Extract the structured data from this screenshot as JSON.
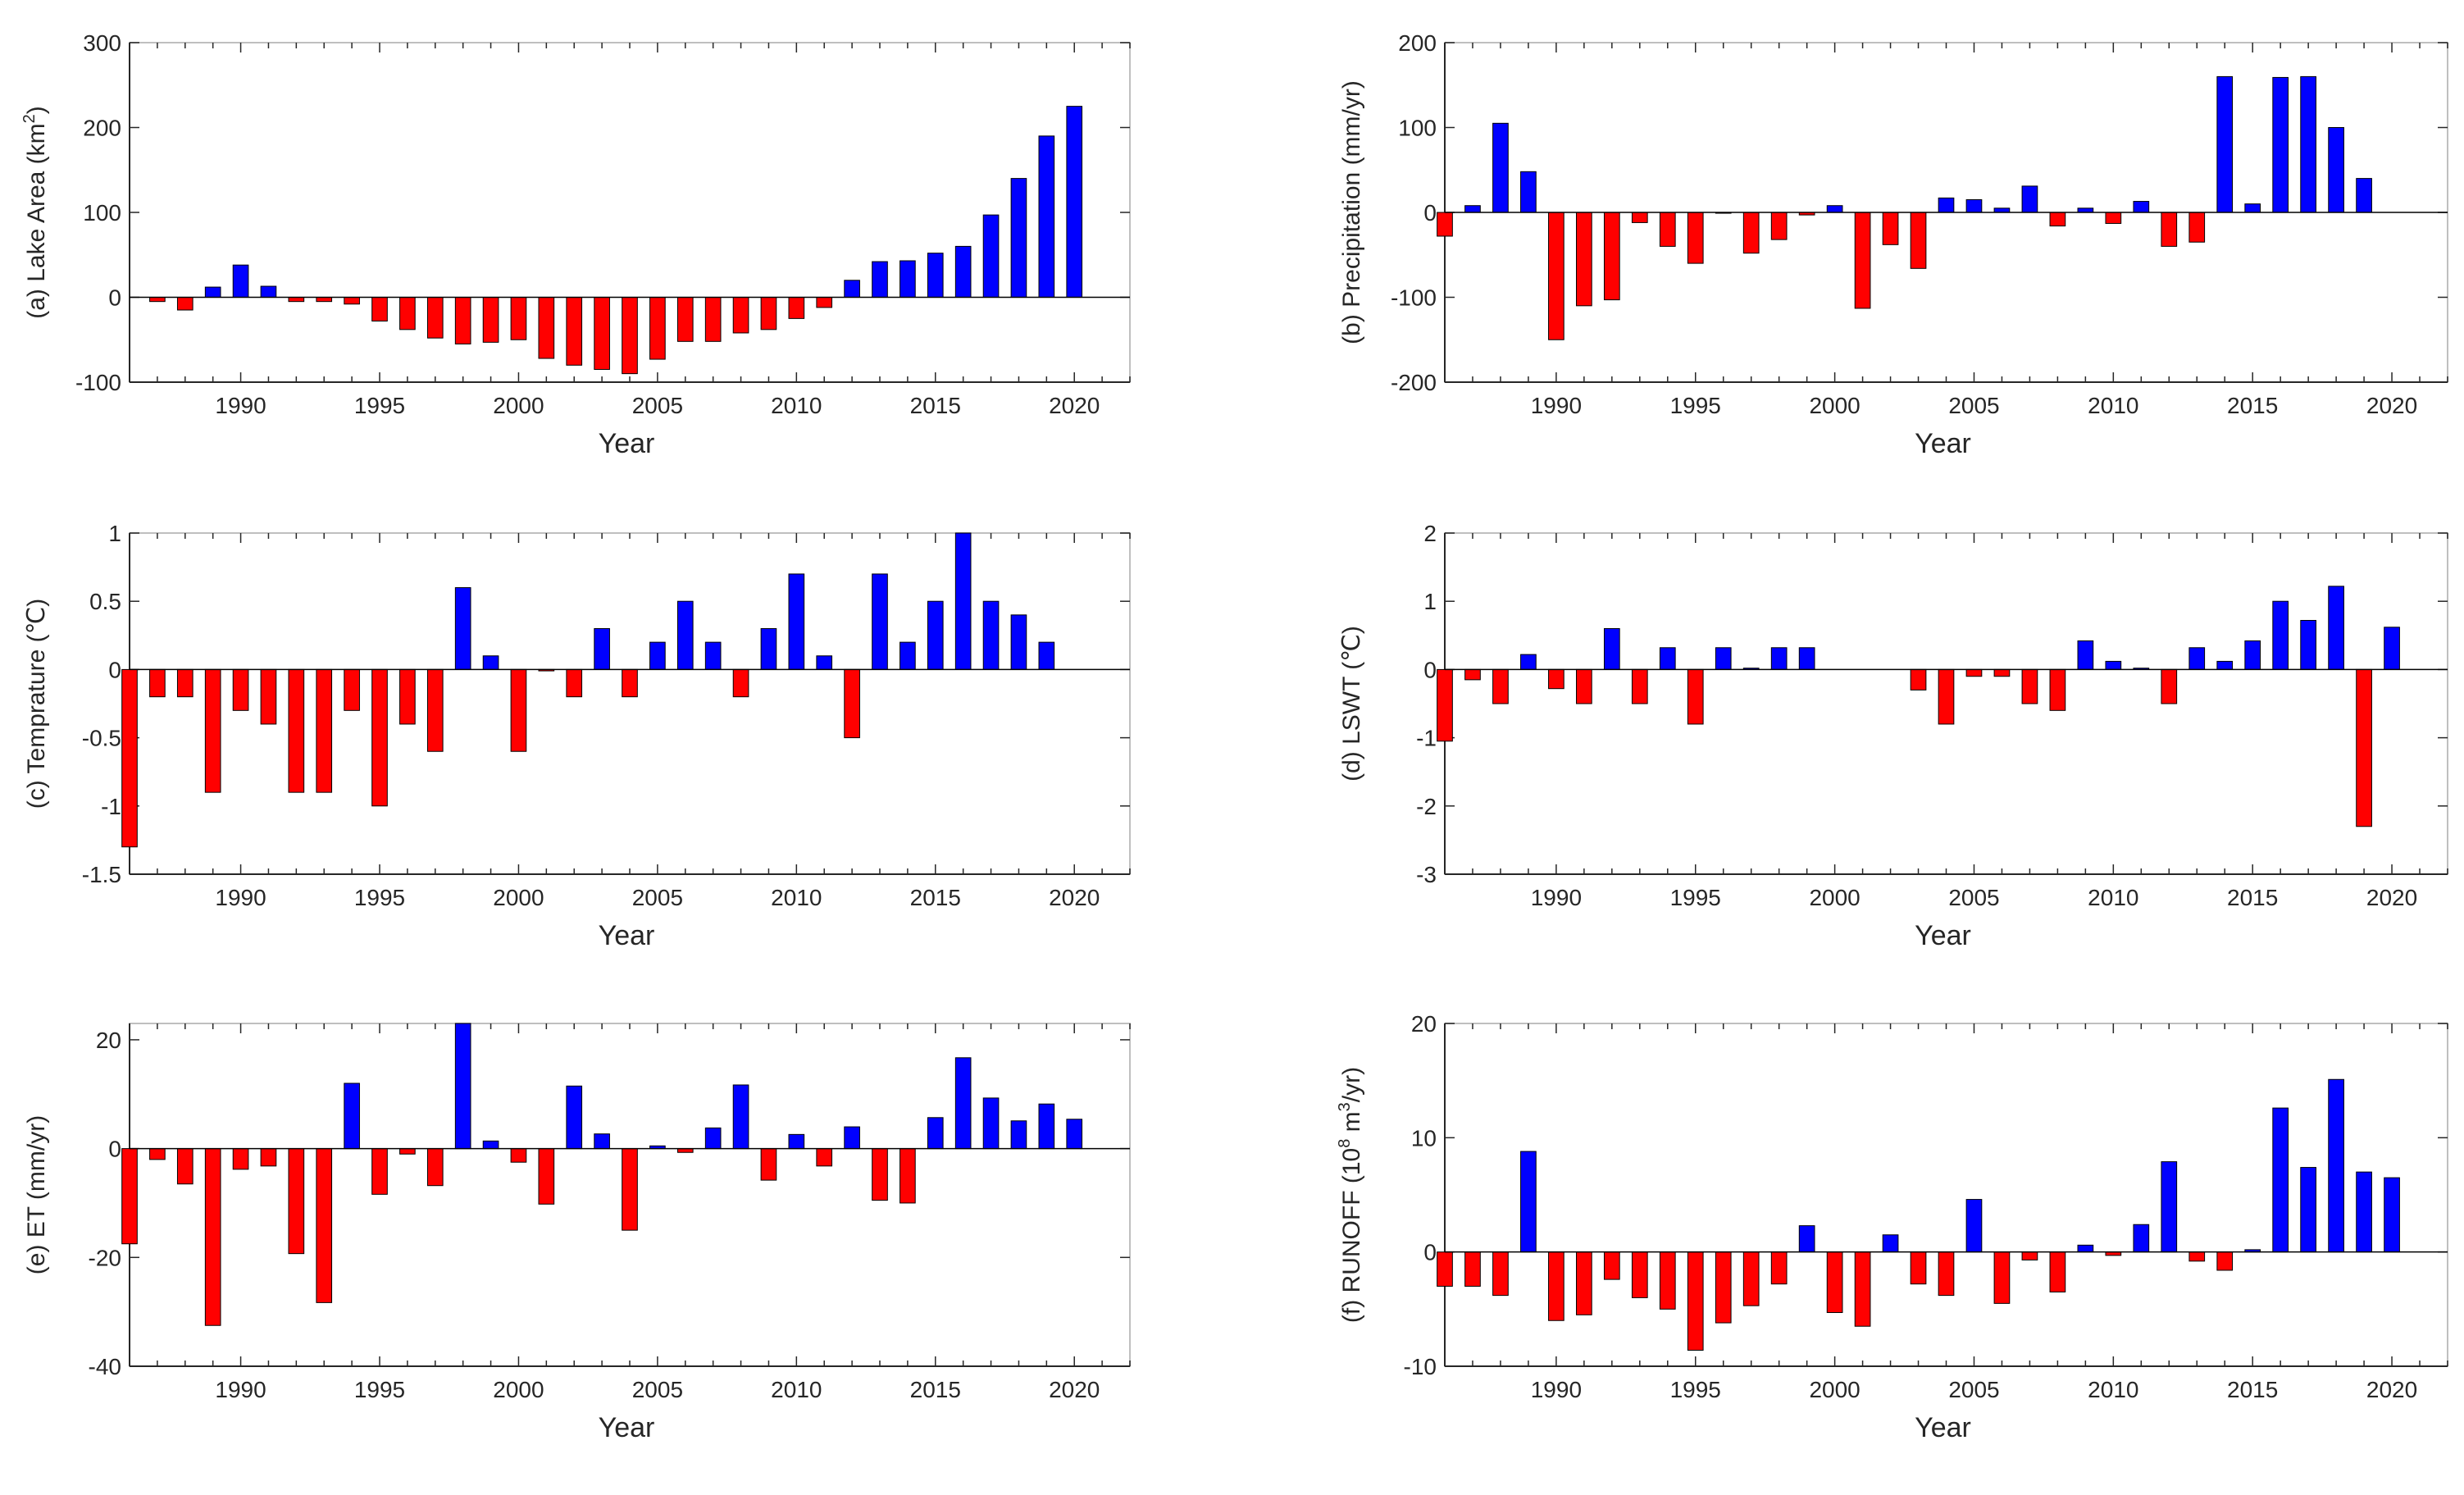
{
  "colors": {
    "positive": "#0000ff",
    "negative": "#ff0000",
    "axis": "#262626",
    "frame": "#bfbfbf",
    "background": "#ffffff"
  },
  "chart_data": [
    {
      "id": "a",
      "type": "bar",
      "ylabel": "(a) Lake Area (km²)",
      "ylabel_main": "(a) Lake Area (km",
      "ylabel_sup": "2",
      "ylabel_tail": ")",
      "xlabel": "Year",
      "xlim": [
        1986,
        2022
      ],
      "ylim": [
        -100,
        300
      ],
      "yticks": [
        -100,
        0,
        100,
        200,
        300
      ],
      "ytick_labels": [
        "-100",
        "0",
        "100",
        "200",
        "300"
      ],
      "xticks": [
        1990,
        1995,
        2000,
        2005,
        2010,
        2015,
        2020
      ],
      "xtick_labels": [
        "1990",
        "1995",
        "2000",
        "2005",
        "2010",
        "2015",
        "2020"
      ],
      "x": [
        1987,
        1988,
        1989,
        1990,
        1991,
        1992,
        1993,
        1994,
        1995,
        1996,
        1997,
        1998,
        1999,
        2000,
        2001,
        2002,
        2003,
        2004,
        2005,
        2006,
        2007,
        2008,
        2009,
        2010,
        2011,
        2012,
        2013,
        2014,
        2015,
        2016,
        2017,
        2018,
        2019,
        2020
      ],
      "values": [
        -5,
        -15,
        12,
        38,
        13,
        -5,
        -5,
        -8,
        -28,
        -38,
        -48,
        -55,
        -53,
        -50,
        -72,
        -80,
        -85,
        -90,
        -73,
        -52,
        -52,
        -42,
        -38,
        -25,
        -12,
        20,
        42,
        43,
        52,
        60,
        97,
        140,
        190,
        225
      ]
    },
    {
      "id": "b",
      "type": "bar",
      "ylabel": "(b) Precipitation (mm/yr)",
      "xlabel": "Year",
      "xlim": [
        1986,
        2022
      ],
      "ylim": [
        -200,
        200
      ],
      "yticks": [
        -200,
        -100,
        0,
        100,
        200
      ],
      "ytick_labels": [
        "-200",
        "-100",
        "0",
        "100",
        "200"
      ],
      "xticks": [
        1990,
        1995,
        2000,
        2005,
        2010,
        2015,
        2020
      ],
      "xtick_labels": [
        "1990",
        "1995",
        "2000",
        "2005",
        "2010",
        "2015",
        "2020"
      ],
      "x": [
        1986,
        1987,
        1988,
        1989,
        1990,
        1991,
        1992,
        1993,
        1994,
        1995,
        1996,
        1997,
        1998,
        1999,
        2000,
        2001,
        2002,
        2003,
        2004,
        2005,
        2006,
        2007,
        2008,
        2009,
        2010,
        2011,
        2012,
        2013,
        2014,
        2015,
        2016,
        2017,
        2018,
        2019
      ],
      "values": [
        -28,
        8,
        105,
        48,
        -150,
        -110,
        -103,
        -12,
        -40,
        -60,
        -1,
        -48,
        -32,
        -3,
        8,
        -113,
        -38,
        -66,
        17,
        15,
        5,
        31,
        -16,
        5,
        -13,
        13,
        -40,
        -35,
        160,
        10,
        159,
        160,
        100,
        40
      ]
    },
    {
      "id": "c",
      "type": "bar",
      "ylabel": "(c) Temprature (℃)",
      "xlabel": "Year",
      "xlim": [
        1986,
        2022
      ],
      "ylim": [
        -1.5,
        1
      ],
      "yticks": [
        -1.5,
        -1,
        -0.5,
        0,
        0.5,
        1
      ],
      "ytick_labels": [
        "-1.5",
        "-1",
        "-0.5",
        "0",
        "0.5",
        "1"
      ],
      "xticks": [
        1990,
        1995,
        2000,
        2005,
        2010,
        2015,
        2020
      ],
      "xtick_labels": [
        "1990",
        "1995",
        "2000",
        "2005",
        "2010",
        "2015",
        "2020"
      ],
      "x": [
        1986,
        1987,
        1988,
        1989,
        1990,
        1991,
        1992,
        1993,
        1994,
        1995,
        1996,
        1997,
        1998,
        1999,
        2000,
        2001,
        2002,
        2003,
        2004,
        2005,
        2006,
        2007,
        2008,
        2009,
        2010,
        2011,
        2012,
        2013,
        2014,
        2015,
        2016,
        2017,
        2018,
        2019
      ],
      "values": [
        -1.3,
        -0.2,
        -0.2,
        -0.9,
        -0.3,
        -0.4,
        -0.9,
        -0.9,
        -0.3,
        -1.0,
        -0.4,
        -0.6,
        0.6,
        0.1,
        -0.6,
        -0.01,
        -0.2,
        0.3,
        -0.2,
        0.2,
        0.5,
        0.2,
        -0.2,
        0.3,
        0.7,
        0.1,
        -0.5,
        0.7,
        0.2,
        0.5,
        1.0,
        0.5,
        0.4,
        0.2
      ]
    },
    {
      "id": "d",
      "type": "bar",
      "ylabel": "(d) LSWT (℃)",
      "xlabel": "Year",
      "xlim": [
        1986,
        2022
      ],
      "ylim": [
        -3,
        2
      ],
      "yticks": [
        -3,
        -2,
        -1,
        0,
        1,
        2
      ],
      "ytick_labels": [
        "-3",
        "-2",
        "-1",
        "0",
        "1",
        "2"
      ],
      "xticks": [
        1990,
        1995,
        2000,
        2005,
        2010,
        2015,
        2020
      ],
      "xtick_labels": [
        "1990",
        "1995",
        "2000",
        "2005",
        "2010",
        "2015",
        "2020"
      ],
      "x": [
        1986,
        1987,
        1988,
        1989,
        1990,
        1991,
        1992,
        1993,
        1994,
        1995,
        1996,
        1997,
        1998,
        1999,
        2003,
        2004,
        2005,
        2006,
        2007,
        2008,
        2009,
        2010,
        2011,
        2012,
        2013,
        2014,
        2015,
        2016,
        2017,
        2018,
        2019,
        2020
      ],
      "values": [
        -1.05,
        -0.15,
        -0.5,
        0.22,
        -0.28,
        -0.5,
        0.6,
        -0.5,
        0.32,
        -0.8,
        0.32,
        0.02,
        0.32,
        0.32,
        -0.3,
        -0.8,
        -0.1,
        -0.1,
        -0.5,
        -0.6,
        0.42,
        0.12,
        0.02,
        -0.5,
        0.32,
        0.12,
        0.42,
        1.0,
        0.72,
        1.22,
        -2.3,
        0.62
      ]
    },
    {
      "id": "e",
      "type": "bar",
      "ylabel": "(e) ET (mm/yr)",
      "xlabel": "Year",
      "xlim": [
        1986,
        2022
      ],
      "ylim": [
        -40,
        23
      ],
      "yticks": [
        -40,
        -20,
        0,
        20
      ],
      "ytick_labels": [
        "-40",
        "-20",
        "0",
        "20"
      ],
      "xticks": [
        1990,
        1995,
        2000,
        2005,
        2010,
        2015,
        2020
      ],
      "xtick_labels": [
        "1990",
        "1995",
        "2000",
        "2005",
        "2010",
        "2015",
        "2020"
      ],
      "x": [
        1986,
        1987,
        1988,
        1989,
        1990,
        1991,
        1992,
        1993,
        1994,
        1995,
        1996,
        1997,
        1998,
        1999,
        2000,
        2001,
        2002,
        2003,
        2004,
        2005,
        2006,
        2007,
        2008,
        2009,
        2010,
        2011,
        2012,
        2013,
        2014,
        2015,
        2016,
        2017,
        2018,
        2019,
        2020
      ],
      "values": [
        -17.5,
        -2,
        -6.5,
        -32.5,
        -3.8,
        -3.2,
        -19.3,
        -28.3,
        12,
        -8.4,
        -1,
        -6.8,
        23,
        1.4,
        -2.5,
        -10.2,
        11.5,
        2.7,
        -15,
        0.5,
        -0.7,
        3.8,
        11.7,
        -5.8,
        2.6,
        -3.2,
        4,
        -9.5,
        -10,
        5.7,
        16.7,
        9.3,
        5.1,
        8.2,
        5.4
      ]
    },
    {
      "id": "f",
      "type": "bar",
      "ylabel": "(f) RUNOFF (10⁸ m³/yr)",
      "ylabel_p1": "(f) RUNOFF (10",
      "ylabel_sup1": "8",
      "ylabel_p2": " m",
      "ylabel_sup2": "3",
      "ylabel_p3": "/yr)",
      "xlabel": "Year",
      "xlim": [
        1986,
        2022
      ],
      "ylim": [
        -10,
        20
      ],
      "yticks": [
        -10,
        0,
        10,
        20
      ],
      "ytick_labels": [
        "-10",
        "0",
        "10",
        "20"
      ],
      "xticks": [
        1990,
        1995,
        2000,
        2005,
        2010,
        2015,
        2020
      ],
      "xtick_labels": [
        "1990",
        "1995",
        "2000",
        "2005",
        "2010",
        "2015",
        "2020"
      ],
      "x": [
        1986,
        1987,
        1988,
        1989,
        1990,
        1991,
        1992,
        1993,
        1994,
        1995,
        1996,
        1997,
        1998,
        1999,
        2000,
        2001,
        2002,
        2003,
        2004,
        2005,
        2006,
        2007,
        2008,
        2009,
        2010,
        2011,
        2012,
        2013,
        2014,
        2015,
        2016,
        2017,
        2018,
        2019,
        2020
      ],
      "values": [
        -3,
        -3,
        -3.8,
        8.8,
        -6,
        -5.5,
        -2.4,
        -4,
        -5,
        -8.6,
        -6.2,
        -4.7,
        -2.8,
        2.3,
        -5.3,
        -6.5,
        1.5,
        -2.8,
        -3.8,
        4.6,
        -4.5,
        -0.7,
        -3.5,
        0.6,
        -0.3,
        2.4,
        7.9,
        -0.8,
        -1.6,
        0.2,
        12.6,
        7.4,
        15.1,
        7,
        6.5
      ]
    }
  ]
}
